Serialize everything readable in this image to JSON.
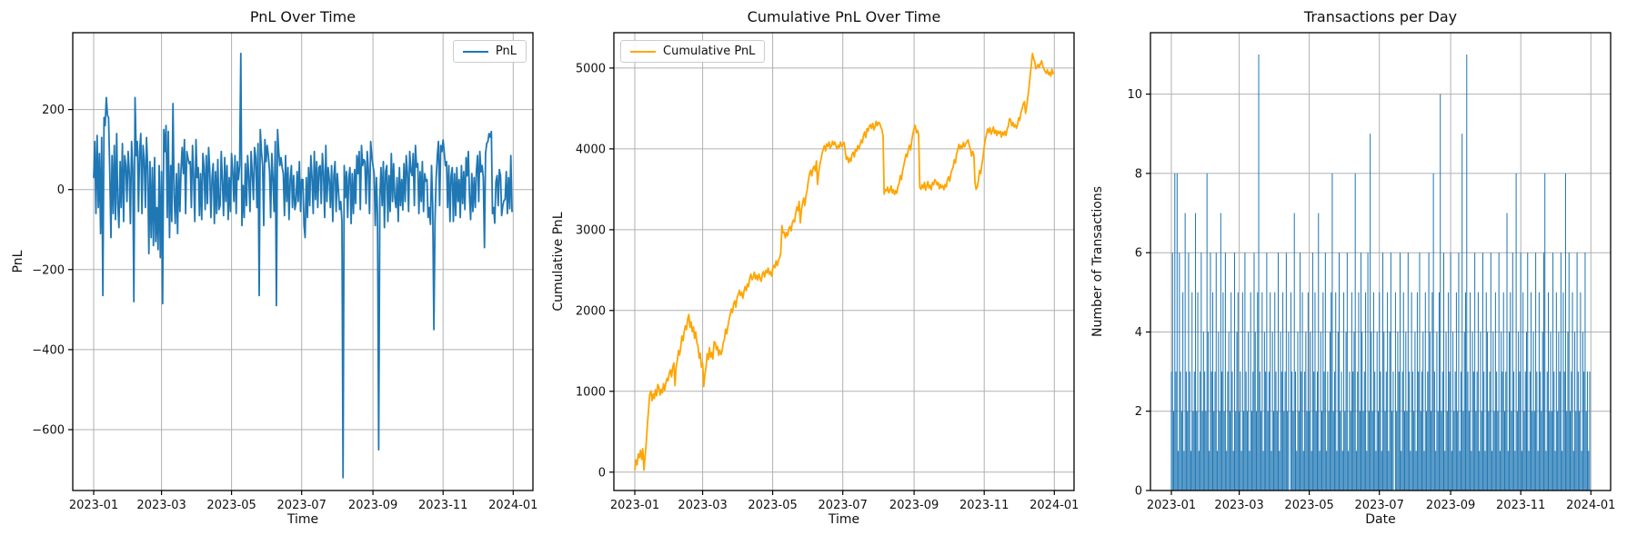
{
  "page": {
    "background": "#ffffff",
    "grid_color": "#b0b0b0",
    "axis_color": "#000000",
    "text_color": "#111111",
    "tick_font_px": 13
  },
  "chart_data": [
    {
      "type": "line",
      "title": "PnL Over Time",
      "xlabel": "Time",
      "ylabel": "PnL",
      "color": "#1f77b4",
      "legend": {
        "label": "PnL",
        "loc": "upper right"
      },
      "x_start_date": "2023-01-01",
      "x_unit": "day",
      "x_tick_labels": [
        "2023-01",
        "2023-03",
        "2023-05",
        "2023-07",
        "2023-09",
        "2023-11",
        "2024-01"
      ],
      "x_tick_days": [
        0,
        59,
        120,
        181,
        243,
        304,
        365
      ],
      "xlim_days": [
        -18.2,
        382.2
      ],
      "ylim": [
        -752,
        392
      ],
      "y_ticks": [
        {
          "v": -600,
          "label": "−600"
        },
        {
          "v": -400,
          "label": "−400"
        },
        {
          "v": -200,
          "label": "−200"
        },
        {
          "v": 0,
          "label": "0"
        },
        {
          "v": 200,
          "label": "200"
        }
      ],
      "grid": true,
      "summary": {
        "min": -720,
        "max": 340,
        "big_drawdowns": [
          "2023-08 ≈ −720",
          "2023-09 ≈ −650",
          "2023-10 ≈ −350"
        ]
      },
      "values": [
        30,
        120,
        -60,
        135,
        -45,
        90,
        -110,
        130,
        -265,
        180,
        160,
        230,
        185,
        180,
        45,
        -120,
        85,
        -60,
        110,
        -75,
        140,
        -35,
        -95,
        70,
        -45,
        115,
        -80,
        85,
        60,
        -30,
        95,
        40,
        -85,
        120,
        50,
        -280,
        230,
        85,
        120,
        -55,
        95,
        140,
        -60,
        110,
        75,
        -45,
        130,
        55,
        -160,
        70,
        -120,
        55,
        -140,
        80,
        -130,
        -45,
        -150,
        60,
        -170,
        45,
        -285,
        150,
        95,
        160,
        -70,
        145,
        -120,
        60,
        -80,
        215,
        -15,
        -85,
        40,
        -110,
        65,
        -55,
        45,
        105,
        40,
        125,
        -60,
        95,
        80,
        65,
        70,
        -45,
        110,
        35,
        -80,
        125,
        30,
        55,
        -65,
        40,
        -75,
        90,
        55,
        -50,
        85,
        -35,
        105,
        50,
        -70,
        30,
        65,
        -85,
        45,
        -60,
        75,
        -50,
        -40,
        95,
        25,
        -65,
        80,
        -30,
        60,
        -75,
        30,
        -55,
        90,
        45,
        -30,
        85,
        -60,
        70,
        25,
        60,
        340,
        -90,
        10,
        -70,
        65,
        -40,
        85,
        30,
        -55,
        95,
        40,
        -25,
        105,
        80,
        -45,
        115,
        -265,
        150,
        95,
        60,
        -90,
        125,
        70,
        110,
        85,
        45,
        -70,
        90,
        30,
        -55,
        120,
        -290,
        150,
        95,
        60,
        80,
        55,
        40,
        -65,
        85,
        -30,
        55,
        -75,
        25,
        60,
        -45,
        35,
        -50,
        -35,
        45,
        -30,
        70,
        -55,
        25,
        25,
        -90,
        -120,
        30,
        -70,
        55,
        -40,
        85,
        30,
        -60,
        95,
        -25,
        70,
        -45,
        55,
        60,
        -35,
        90,
        45,
        -70,
        110,
        -30,
        55,
        25,
        -45,
        60,
        -80,
        35,
        70,
        -55,
        40,
        -5,
        -50,
        -30,
        -80,
        -720,
        60,
        -20,
        45,
        -70,
        30,
        55,
        -85,
        40,
        -60,
        50,
        -35,
        85,
        40,
        95,
        -50,
        110,
        60,
        75,
        70,
        -35,
        95,
        50,
        -60,
        120,
        85,
        60,
        40,
        -90,
        30,
        -60,
        -650,
        -20,
        55,
        -40,
        70,
        -95,
        45,
        60,
        -80,
        35,
        -55,
        90,
        -30,
        65,
        -20,
        -45,
        30,
        -80,
        55,
        -40,
        25,
        -51,
        65,
        -30,
        85,
        40,
        -55,
        95,
        46,
        35,
        90,
        -40,
        110,
        56,
        65,
        -60,
        45,
        -30,
        70,
        -55,
        40,
        21,
        25,
        -70,
        -45,
        -87,
        60,
        -40,
        -350,
        -80,
        28,
        85,
        120,
        -40,
        110,
        95,
        124,
        95,
        60,
        70,
        -45,
        60,
        -80,
        34,
        55,
        -80,
        40,
        -65,
        55,
        -30,
        25,
        -70,
        60,
        -35,
        45,
        -50,
        80,
        34,
        95,
        -15,
        -75,
        40,
        -55,
        30,
        -45,
        45,
        85,
        -30,
        95,
        44,
        60,
        30,
        -145,
        90,
        115,
        120,
        140,
        131,
        145,
        -60,
        -45,
        -84,
        20,
        35,
        -40,
        50,
        34,
        -65,
        -40,
        -27,
        -25,
        45,
        -60,
        30,
        -48,
        85,
        -55
      ]
    },
    {
      "type": "line",
      "title": "Cumulative PnL Over Time",
      "xlabel": "Time",
      "ylabel": "Cumulative PnL",
      "color": "#ffa500",
      "legend": {
        "label": "Cumulative PnL",
        "loc": "upper left"
      },
      "x_start_date": "2023-01-01",
      "x_unit": "day",
      "x_tick_labels": [
        "2023-01",
        "2023-03",
        "2023-05",
        "2023-07",
        "2023-09",
        "2023-11",
        "2024-01"
      ],
      "x_tick_days": [
        0,
        59,
        120,
        181,
        243,
        304,
        365
      ],
      "xlim_days": [
        -18.2,
        382.2
      ],
      "ylim": [
        -227,
        5437
      ],
      "y_ticks": [
        {
          "v": 0,
          "label": "0"
        },
        {
          "v": 1000,
          "label": "1000"
        },
        {
          "v": 2000,
          "label": "2000"
        },
        {
          "v": 3000,
          "label": "3000"
        },
        {
          "v": 4000,
          "label": "4000"
        },
        {
          "v": 5000,
          "label": "5000"
        }
      ],
      "grid": true,
      "derived": "cumulative sum of PnL series (chart 1)",
      "summary": {
        "start": 30,
        "peak": 5180,
        "peak_date": "2023-12-13",
        "end": 4930
      }
    },
    {
      "type": "bar",
      "title": "Transactions per Day",
      "xlabel": "Date",
      "ylabel": "Number of Transactions",
      "color": "#1f77b4",
      "x_start_date": "2023-01-01",
      "x_unit": "day",
      "x_tick_labels": [
        "2023-01",
        "2023-03",
        "2023-05",
        "2023-07",
        "2023-09",
        "2023-11",
        "2024-01"
      ],
      "x_tick_days": [
        0,
        59,
        120,
        181,
        243,
        304,
        365
      ],
      "xlim_days": [
        -18.2,
        382.2
      ],
      "ylim": [
        0,
        11.55
      ],
      "bar_width_days": 0.8,
      "y_ticks": [
        {
          "v": 0,
          "label": "0"
        },
        {
          "v": 2,
          "label": "2"
        },
        {
          "v": 4,
          "label": "4"
        },
        {
          "v": 6,
          "label": "6"
        },
        {
          "v": 8,
          "label": "8"
        },
        {
          "v": 10,
          "label": "10"
        }
      ],
      "grid": true,
      "summary": {
        "max": 11,
        "typical_range": "1-6"
      },
      "values": [
        3,
        6,
        2,
        8,
        3,
        8,
        1,
        6,
        3,
        2,
        5,
        1,
        7,
        3,
        2,
        6,
        3,
        1,
        5,
        2,
        3,
        7,
        2,
        5,
        1,
        3,
        6,
        2,
        4,
        3,
        2,
        8,
        4,
        1,
        6,
        3,
        5,
        2,
        3,
        6,
        1,
        4,
        2,
        7,
        3,
        5,
        2,
        6,
        1,
        3,
        4,
        2,
        5,
        3,
        1,
        6,
        2,
        4,
        5,
        2,
        3,
        1,
        5,
        2,
        6,
        3,
        2,
        4,
        1,
        5,
        2,
        3,
        6,
        4,
        2,
        5,
        11,
        3,
        2,
        5,
        1,
        4,
        3,
        6,
        2,
        3,
        5,
        1,
        4,
        2,
        5,
        3,
        2,
        6,
        1,
        4,
        3,
        5,
        2,
        3,
        6,
        2,
        4,
        0,
        5,
        3,
        2,
        7,
        3,
        1,
        4,
        2,
        6,
        3,
        5,
        1,
        3,
        4,
        2,
        5,
        2,
        4,
        1,
        6,
        3,
        5,
        2,
        3,
        7,
        1,
        4,
        2,
        5,
        3,
        6,
        1,
        3,
        2,
        4,
        5,
        8,
        2,
        3,
        5,
        1,
        4,
        6,
        2,
        3,
        1,
        5,
        2,
        4,
        6,
        1,
        3,
        2,
        5,
        3,
        4,
        8,
        1,
        3,
        5,
        2,
        6,
        4,
        2,
        3,
        5,
        1,
        6,
        2,
        9,
        4,
        2,
        5,
        3,
        1,
        4,
        2,
        5,
        3,
        1,
        6,
        4,
        2,
        3,
        5,
        1,
        4,
        6,
        2,
        3,
        0,
        5,
        2,
        4,
        3,
        6,
        1,
        3,
        5,
        2,
        4,
        2,
        6,
        3,
        1,
        5,
        3,
        2,
        4,
        1,
        5,
        3,
        6,
        2,
        3,
        4,
        1,
        5,
        2,
        3,
        6,
        4,
        2,
        5,
        8,
        3,
        1,
        4,
        2,
        5,
        10,
        2,
        3,
        6,
        1,
        4,
        2,
        5,
        3,
        6,
        1,
        4,
        2,
        3,
        5,
        2,
        6,
        1,
        3,
        9,
        2,
        4,
        5,
        11,
        3,
        2,
        5,
        1,
        4,
        3,
        6,
        2,
        3,
        5,
        1,
        4,
        2,
        6,
        3,
        1,
        5,
        4,
        2,
        3,
        6,
        1,
        4,
        2,
        5,
        3,
        2,
        6,
        1,
        4,
        3,
        5,
        2,
        3,
        7,
        1,
        4,
        5,
        2,
        6,
        3,
        1,
        8,
        2,
        4,
        3,
        6,
        1,
        5,
        2,
        3,
        4,
        6,
        1,
        3,
        5,
        2,
        4,
        2,
        6,
        3,
        1,
        5,
        3,
        2,
        4,
        6,
        8,
        1,
        3,
        5,
        2,
        4,
        2,
        6,
        3,
        1,
        5,
        2,
        4,
        3,
        6,
        1,
        5,
        3,
        8,
        2,
        4,
        6,
        2,
        3,
        5,
        1,
        4,
        2,
        6,
        3,
        2,
        5,
        1,
        4,
        3,
        6,
        2,
        3,
        1,
        3
      ]
    }
  ]
}
